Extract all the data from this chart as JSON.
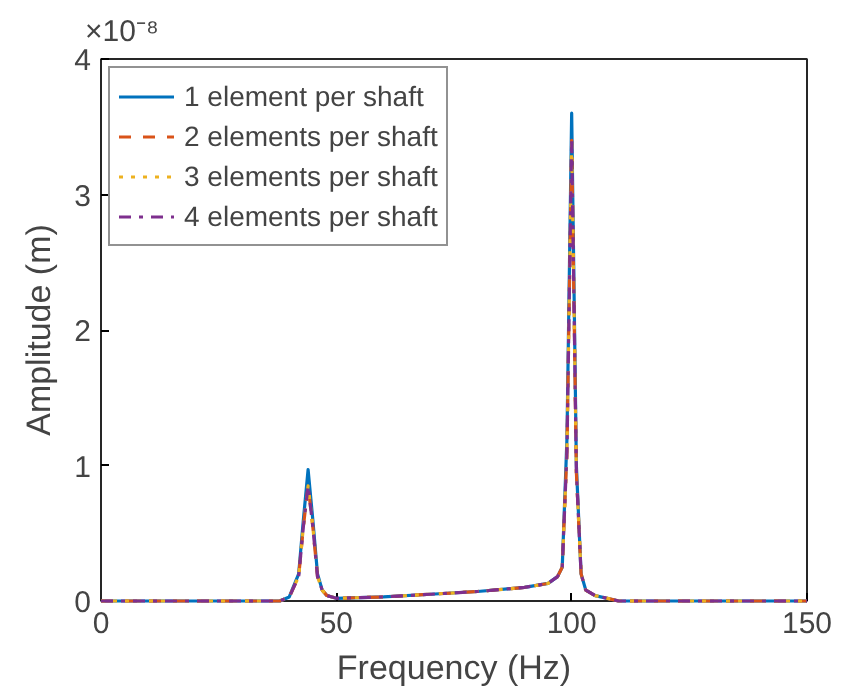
{
  "chart_data": {
    "type": "line",
    "xlabel": "Frequency (Hz)",
    "ylabel": "Amplitude (m)",
    "annotations": [
      "×10⁻⁸"
    ],
    "xlim": [
      0,
      150
    ],
    "xticks": [
      0,
      50,
      100,
      150
    ],
    "ylim": [
      0,
      4
    ],
    "yticks": [
      0,
      1,
      2,
      3,
      4
    ],
    "x": [
      0,
      20,
      38,
      40,
      42,
      43,
      44,
      45,
      46,
      47,
      48,
      50,
      60,
      70,
      80,
      90,
      95,
      97,
      98,
      99,
      100,
      101,
      102,
      103,
      105,
      110,
      120,
      150
    ],
    "legend": "top left",
    "grid": false,
    "series": [
      {
        "name": "1 element per shaft",
        "color": "#0072bd",
        "line_style": "solid",
        "values": [
          0,
          0,
          0,
          0.03,
          0.2,
          0.6,
          0.97,
          0.6,
          0.2,
          0.08,
          0.04,
          0.02,
          0.03,
          0.05,
          0.07,
          0.1,
          0.13,
          0.18,
          0.25,
          1.2,
          3.6,
          1.0,
          0.2,
          0.08,
          0.04,
          0,
          0,
          0
        ]
      },
      {
        "name": "2 elements per shaft",
        "color": "#d95319",
        "line_style": "dashed",
        "values": [
          0,
          0,
          0,
          0.03,
          0.18,
          0.55,
          0.85,
          0.55,
          0.18,
          0.08,
          0.04,
          0.02,
          0.03,
          0.05,
          0.07,
          0.1,
          0.13,
          0.18,
          0.25,
          1.1,
          3.4,
          0.95,
          0.2,
          0.08,
          0.04,
          0,
          0,
          0
        ]
      },
      {
        "name": "3 elements per shaft",
        "color": "#edb120",
        "line_style": "dotted",
        "values": [
          0,
          0,
          0,
          0.03,
          0.18,
          0.55,
          0.85,
          0.55,
          0.18,
          0.08,
          0.04,
          0.02,
          0.03,
          0.05,
          0.07,
          0.1,
          0.13,
          0.18,
          0.25,
          1.1,
          3.4,
          0.95,
          0.2,
          0.08,
          0.04,
          0,
          0,
          0
        ]
      },
      {
        "name": "4 elements per shaft",
        "color": "#7e2f8e",
        "line_style": "dashdot",
        "values": [
          0,
          0,
          0,
          0.03,
          0.18,
          0.55,
          0.85,
          0.55,
          0.18,
          0.08,
          0.04,
          0.02,
          0.03,
          0.05,
          0.07,
          0.1,
          0.13,
          0.18,
          0.25,
          1.1,
          3.4,
          0.95,
          0.2,
          0.08,
          0.04,
          0,
          0,
          0
        ]
      }
    ]
  }
}
